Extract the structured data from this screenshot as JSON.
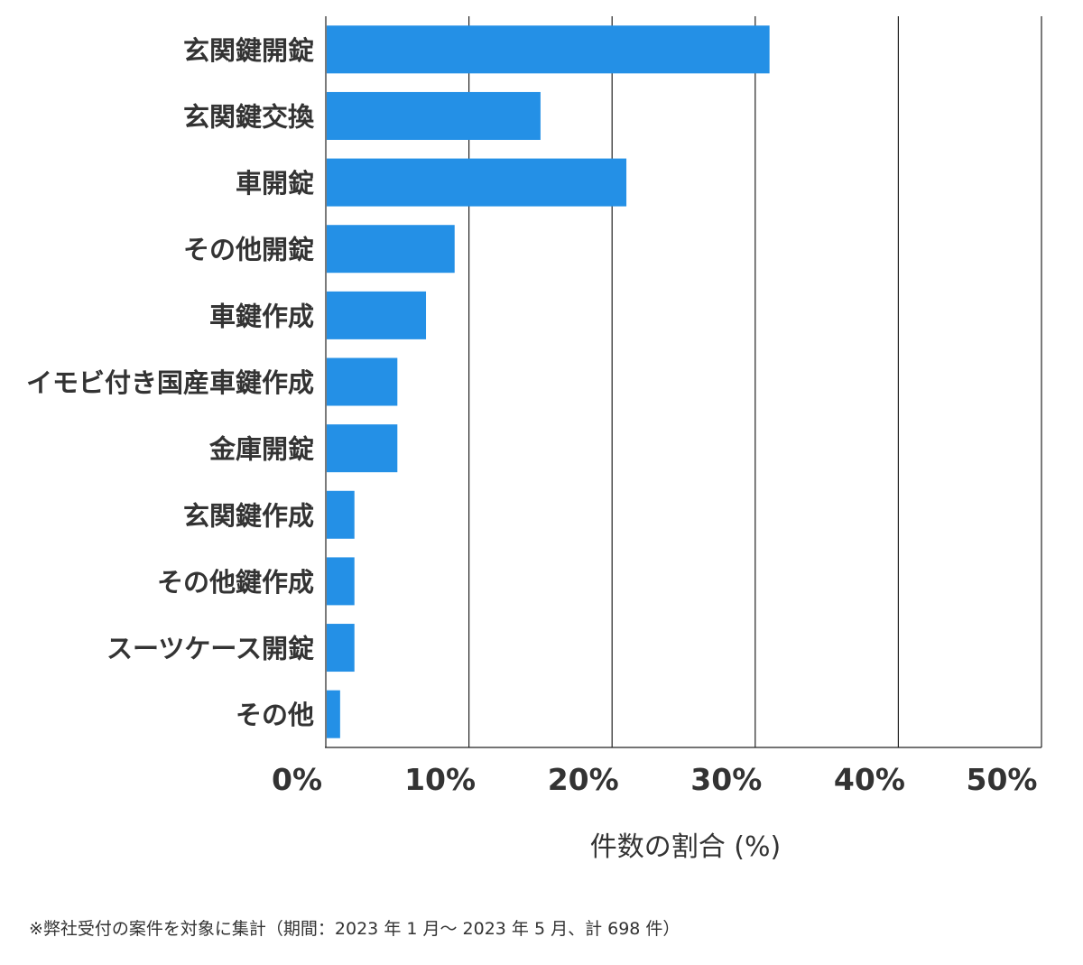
{
  "chart_data": {
    "type": "bar",
    "orientation": "horizontal",
    "categories": [
      "玄関鍵開錠",
      "玄関鍵交換",
      "車開錠",
      "その他開錠",
      "車鍵作成",
      "イモビ付き国産車鍵作成",
      "金庫開錠",
      "玄関鍵作成",
      "その他鍵作成",
      "スーツケース開錠",
      "その他"
    ],
    "values": [
      31.0,
      15.0,
      21.0,
      9.0,
      7.0,
      5.0,
      5.0,
      2.0,
      2.0,
      2.0,
      1.0
    ],
    "xlim": [
      0,
      50
    ],
    "xticks": [
      0,
      10,
      20,
      30,
      40,
      50
    ],
    "xtick_labels": [
      "0%",
      "10%",
      "20%",
      "30%",
      "40%",
      "50%"
    ],
    "xlabel": "件数の割合 (%)",
    "ylabel": "",
    "title": "",
    "grid": "vertical",
    "bar_color": "#2490e6"
  },
  "footnote": "※弊社受付の案件を対象に集計（期間：2023 年 1 月～ 2023 年 5 月、計 698 件）"
}
